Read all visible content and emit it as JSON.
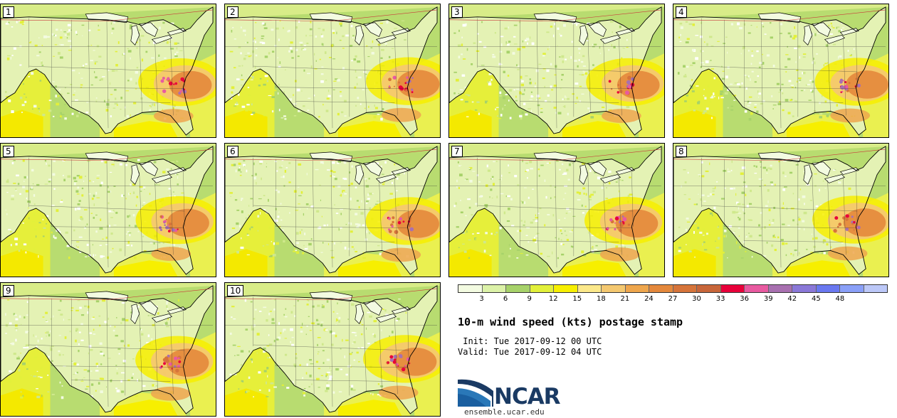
{
  "panels": [
    {
      "label": "1",
      "seed": 11
    },
    {
      "label": "2",
      "seed": 23
    },
    {
      "label": "3",
      "seed": 37
    },
    {
      "label": "4",
      "seed": 41
    },
    {
      "label": "5",
      "seed": 53
    },
    {
      "label": "6",
      "seed": 67
    },
    {
      "label": "7",
      "seed": 71
    },
    {
      "label": "8",
      "seed": 83
    },
    {
      "label": "9",
      "seed": 97
    },
    {
      "label": "10",
      "seed": 109
    }
  ],
  "legend": {
    "colors": [
      "#f3fbe1",
      "#dcf2a8",
      "#a7d26a",
      "#e2f03a",
      "#f7ef00",
      "#fbe88a",
      "#f4c870",
      "#eea64d",
      "#e4883c",
      "#d6743a",
      "#c8663a",
      "#e8003a",
      "#e85aa0",
      "#a870b0",
      "#8a78d8",
      "#6a78f0",
      "#8aa0f8",
      "#bcc8f8"
    ],
    "ticks": [
      "3",
      "6",
      "9",
      "12",
      "15",
      "18",
      "21",
      "24",
      "27",
      "30",
      "33",
      "36",
      "39",
      "42",
      "45",
      "48"
    ]
  },
  "title": "10-m wind speed (kts) postage stamp",
  "init": " Init: Tue 2017-09-12 00 UTC",
  "valid": "Valid: Tue 2017-09-12 04 UTC",
  "logo_text": "NCAR",
  "website": "ensemble.ucar.edu"
}
